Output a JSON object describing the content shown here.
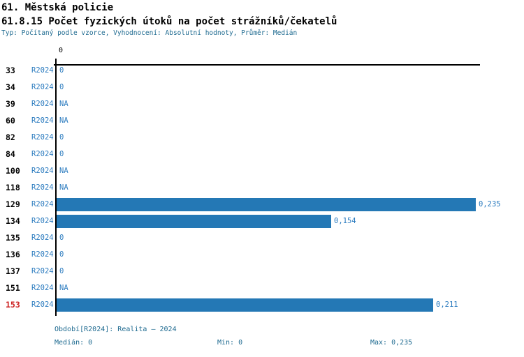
{
  "header": {
    "title_section": "61. Městská policie",
    "title_indicator": "61.8.15 Počet fyzických útoků na počet strážníků/čekatelů",
    "meta": "Typ: Počítaný podle vzorce, Vyhodnocení: Absolutní hodnoty, Průměr: Medián"
  },
  "chart_data": {
    "type": "bar",
    "orientation": "horizontal",
    "title": "",
    "xlabel": "",
    "ylabel": "",
    "x_axis": {
      "tick_labels": [
        "0"
      ],
      "range": [
        0,
        0.235
      ]
    },
    "period": "R2024",
    "categories": [
      "33",
      "34",
      "39",
      "60",
      "82",
      "84",
      "100",
      "118",
      "129",
      "134",
      "135",
      "136",
      "137",
      "151",
      "153"
    ],
    "values": [
      0,
      0,
      null,
      null,
      0,
      0,
      null,
      null,
      0.235,
      0.154,
      0,
      0,
      0,
      null,
      0.211
    ],
    "rows": [
      {
        "id": "33",
        "period": "R2024",
        "value": 0,
        "display": "0",
        "bar": false,
        "highlight": false
      },
      {
        "id": "34",
        "period": "R2024",
        "value": 0,
        "display": "0",
        "bar": false,
        "highlight": false
      },
      {
        "id": "39",
        "period": "R2024",
        "value": null,
        "display": "NA",
        "bar": false,
        "highlight": false
      },
      {
        "id": "60",
        "period": "R2024",
        "value": null,
        "display": "NA",
        "bar": false,
        "highlight": false
      },
      {
        "id": "82",
        "period": "R2024",
        "value": 0,
        "display": "0",
        "bar": false,
        "highlight": false
      },
      {
        "id": "84",
        "period": "R2024",
        "value": 0,
        "display": "0",
        "bar": false,
        "highlight": false
      },
      {
        "id": "100",
        "period": "R2024",
        "value": null,
        "display": "NA",
        "bar": false,
        "highlight": false
      },
      {
        "id": "118",
        "period": "R2024",
        "value": null,
        "display": "NA",
        "bar": false,
        "highlight": false
      },
      {
        "id": "129",
        "period": "R2024",
        "value": 0.235,
        "display": "0,235",
        "bar": true,
        "highlight": false
      },
      {
        "id": "134",
        "period": "R2024",
        "value": 0.154,
        "display": "0,154",
        "bar": true,
        "highlight": false
      },
      {
        "id": "135",
        "period": "R2024",
        "value": 0,
        "display": "0",
        "bar": false,
        "highlight": false
      },
      {
        "id": "136",
        "period": "R2024",
        "value": 0,
        "display": "0",
        "bar": false,
        "highlight": false
      },
      {
        "id": "137",
        "period": "R2024",
        "value": 0,
        "display": "0",
        "bar": false,
        "highlight": false
      },
      {
        "id": "151",
        "period": "R2024",
        "value": null,
        "display": "NA",
        "bar": false,
        "highlight": false
      },
      {
        "id": "153",
        "period": "R2024",
        "value": 0.211,
        "display": "0,211",
        "bar": true,
        "highlight": true
      }
    ],
    "legend": null,
    "grid": false
  },
  "footer": {
    "period_info": "Období[R2024]: Realita – 2024",
    "median": "Medián: 0",
    "min": "Min: 0",
    "max": "Max: 0,235"
  },
  "colors": {
    "bar": "#2478b5",
    "link_blue": "#2b7bbf",
    "meta_teal": "#1e6a90",
    "highlight_red": "#cc2222",
    "axis": "#000000"
  }
}
